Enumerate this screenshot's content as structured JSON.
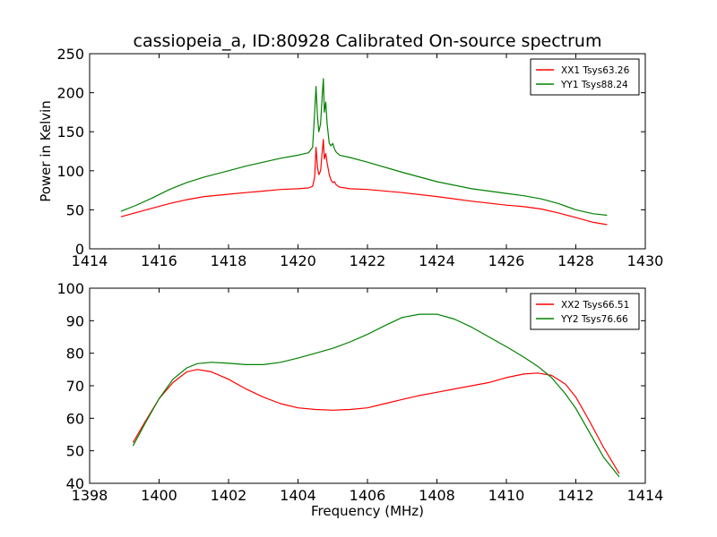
{
  "chart_data": [
    {
      "type": "line",
      "title": "cassiopeia_a, ID:80928 Calibrated On-source spectrum",
      "xlabel": "",
      "ylabel": "Power in Kelvin",
      "xlim": [
        1414,
        1430
      ],
      "ylim": [
        0,
        250
      ],
      "xticks": [
        "1414",
        "1416",
        "1418",
        "1420",
        "1422",
        "1424",
        "1426",
        "1428",
        "1430"
      ],
      "yticks": [
        "0",
        "50",
        "100",
        "150",
        "200",
        "250"
      ],
      "grid": false,
      "legend_position": "top-right",
      "series": [
        {
          "name": "XX1 Tsys63.26",
          "color": "#ff0000",
          "x": [
            1414.9,
            1415.3,
            1415.8,
            1416.3,
            1416.8,
            1417.3,
            1418.0,
            1418.5,
            1419.0,
            1419.5,
            1420.0,
            1420.3,
            1420.42,
            1420.48,
            1420.52,
            1420.56,
            1420.6,
            1420.65,
            1420.7,
            1420.73,
            1420.76,
            1420.8,
            1420.84,
            1420.9,
            1420.95,
            1421.0,
            1421.05,
            1421.1,
            1421.2,
            1421.5,
            1422.0,
            1423.0,
            1424.0,
            1425.0,
            1426.0,
            1426.5,
            1427.0,
            1427.5,
            1428.0,
            1428.5,
            1428.9
          ],
          "y": [
            41,
            46,
            52,
            58,
            63,
            67,
            70,
            72,
            74,
            76,
            77,
            78,
            80,
            92,
            130,
            105,
            95,
            100,
            125,
            140,
            115,
            122,
            110,
            95,
            88,
            85,
            86,
            82,
            79,
            77,
            76,
            72,
            67,
            61,
            56,
            54,
            51,
            46,
            40,
            34,
            31
          ]
        },
        {
          "name": "YY1 Tsys88.24",
          "color": "#008000",
          "x": [
            1414.9,
            1415.3,
            1415.8,
            1416.3,
            1416.8,
            1417.3,
            1418.0,
            1418.5,
            1419.0,
            1419.5,
            1420.0,
            1420.3,
            1420.42,
            1420.48,
            1420.52,
            1420.56,
            1420.6,
            1420.65,
            1420.7,
            1420.73,
            1420.76,
            1420.8,
            1420.84,
            1420.9,
            1420.95,
            1421.0,
            1421.05,
            1421.1,
            1421.2,
            1421.5,
            1422.0,
            1423.0,
            1424.0,
            1425.0,
            1426.0,
            1426.5,
            1427.0,
            1427.5,
            1428.0,
            1428.5,
            1428.9
          ],
          "y": [
            48,
            55,
            65,
            76,
            85,
            92,
            100,
            106,
            111,
            116,
            120,
            123,
            130,
            175,
            208,
            170,
            150,
            160,
            198,
            218,
            175,
            188,
            160,
            135,
            132,
            135,
            128,
            124,
            120,
            117,
            111,
            98,
            86,
            77,
            71,
            68,
            64,
            58,
            50,
            45,
            43
          ]
        }
      ]
    },
    {
      "type": "line",
      "title": "",
      "xlabel": "Frequency (MHz)",
      "ylabel": "",
      "xlim": [
        1398,
        1414
      ],
      "ylim": [
        40,
        100
      ],
      "xticks": [
        "1398",
        "1400",
        "1402",
        "1404",
        "1406",
        "1408",
        "1410",
        "1412",
        "1414"
      ],
      "yticks": [
        "40",
        "50",
        "60",
        "70",
        "80",
        "90",
        "100"
      ],
      "grid": false,
      "legend_position": "top-right",
      "series": [
        {
          "name": "XX2 Tsys66.51",
          "color": "#ff0000",
          "x": [
            1399.25,
            1399.6,
            1400.0,
            1400.4,
            1400.8,
            1401.1,
            1401.5,
            1402.0,
            1402.5,
            1403.0,
            1403.5,
            1404.0,
            1404.5,
            1405.0,
            1405.5,
            1406.0,
            1406.5,
            1407.0,
            1407.5,
            1408.0,
            1408.5,
            1409.0,
            1409.5,
            1410.0,
            1410.5,
            1410.9,
            1411.3,
            1411.7,
            1412.0,
            1412.4,
            1412.8,
            1413.25
          ],
          "y": [
            52.5,
            59,
            66,
            71,
            74.3,
            75,
            74.3,
            72,
            69,
            66.5,
            64.5,
            63.2,
            62.7,
            62.5,
            62.7,
            63.2,
            64.5,
            65.8,
            67,
            68,
            69,
            70,
            71,
            72.5,
            73.6,
            73.9,
            73.2,
            70.5,
            66.5,
            59,
            51,
            43
          ]
        },
        {
          "name": "YY2 Tsys76.66",
          "color": "#008000",
          "x": [
            1399.25,
            1399.6,
            1400.0,
            1400.4,
            1400.8,
            1401.1,
            1401.5,
            1402.0,
            1402.5,
            1403.0,
            1403.5,
            1404.0,
            1404.5,
            1405.0,
            1405.5,
            1406.0,
            1406.5,
            1407.0,
            1407.5,
            1408.0,
            1408.5,
            1409.0,
            1409.5,
            1410.0,
            1410.5,
            1410.9,
            1411.3,
            1411.7,
            1412.0,
            1412.4,
            1412.8,
            1413.25
          ],
          "y": [
            51.5,
            58.5,
            66,
            72,
            75.5,
            76.8,
            77.2,
            76.9,
            76.5,
            76.5,
            77.2,
            78.5,
            80,
            81.5,
            83.5,
            85.8,
            88.5,
            91,
            92,
            92,
            90.5,
            88,
            85,
            82,
            78.8,
            76,
            72.5,
            67.5,
            63,
            55.5,
            48,
            42
          ]
        }
      ]
    }
  ]
}
